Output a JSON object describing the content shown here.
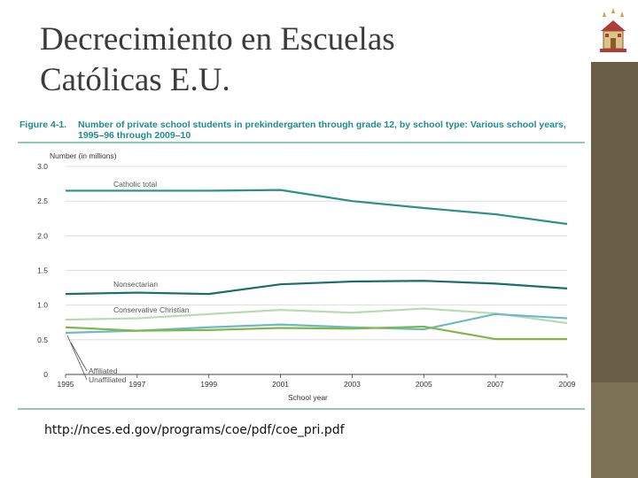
{
  "slide": {
    "title_line1": "Decrecimiento en Escuelas",
    "title_line2": "Católicas E.U.",
    "source_url": "http://nces.ed.gov/programs/coe/pdf/coe_pri.pdf"
  },
  "figure": {
    "label": "Figure 4-1.",
    "caption": "Number of private school students in prekindergarten through grade 12, by school type: Various school years, 1995–96 through 2009–10"
  },
  "colors": {
    "title": "#3b3b3b",
    "figure_header": "#1f8d8d",
    "sidebar": "#6b5e47",
    "catholic": "#2b8f8a",
    "nonsectarian": "#1b6e6a",
    "conservative_christian": "#b7dcb0",
    "affiliated": "#6fb8c8",
    "unaffiliated": "#7fb848"
  },
  "chart_data": {
    "type": "line",
    "title": "Number of private school students in prekindergarten through grade 12, by school type",
    "ylabel": "Number (in millions)",
    "xlabel": "School year",
    "ylim": [
      0,
      3.0
    ],
    "yticks": [
      "0",
      "0.5",
      "1.0",
      "1.5",
      "2.0",
      "2.5",
      "3.0"
    ],
    "xticks": [
      "1995",
      "1997",
      "1999",
      "2001",
      "2003",
      "2005",
      "2007",
      "2009"
    ],
    "x": [
      1995,
      1997,
      1999,
      2001,
      2003,
      2005,
      2007,
      2009
    ],
    "series": [
      {
        "name": "Catholic total",
        "color": "#2b8f8a",
        "values": [
          2.65,
          2.65,
          2.65,
          2.66,
          2.5,
          2.4,
          2.31,
          2.17
        ]
      },
      {
        "name": "Nonsectarian",
        "color": "#1b6e6a",
        "values": [
          1.16,
          1.18,
          1.16,
          1.3,
          1.34,
          1.35,
          1.31,
          1.24
        ]
      },
      {
        "name": "Conservative Christian",
        "color": "#b7dcb0",
        "values": [
          0.79,
          0.81,
          0.87,
          0.93,
          0.89,
          0.95,
          0.88,
          0.74
        ]
      },
      {
        "name": "Affiliated",
        "color": "#6fb8c8",
        "values": [
          0.6,
          0.63,
          0.68,
          0.72,
          0.68,
          0.65,
          0.87,
          0.81
        ]
      },
      {
        "name": "Unaffiliated",
        "color": "#7fb848",
        "values": [
          0.68,
          0.63,
          0.64,
          0.67,
          0.66,
          0.69,
          0.51,
          0.51
        ]
      }
    ]
  }
}
